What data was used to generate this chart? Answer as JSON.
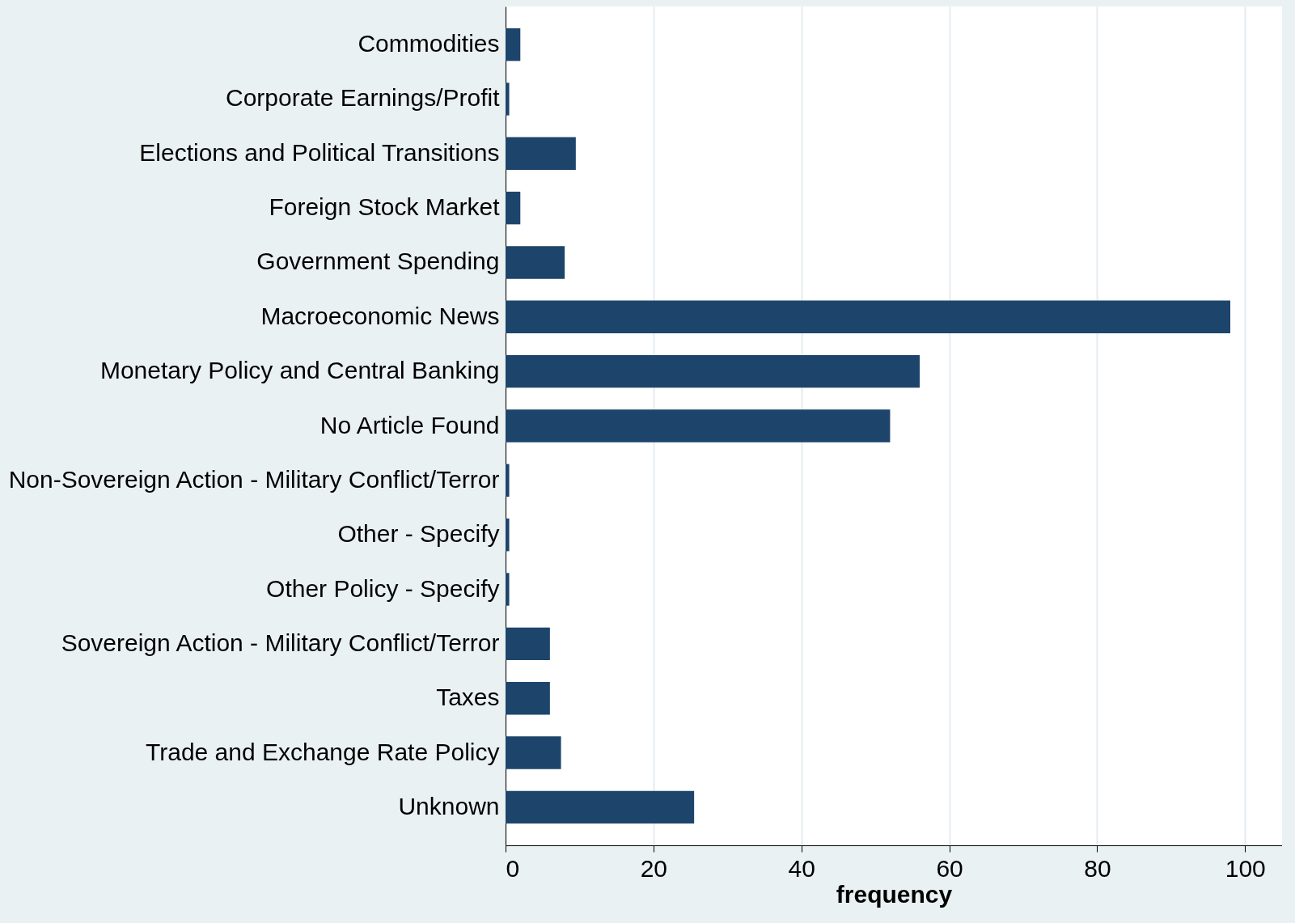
{
  "chart_data": {
    "type": "bar",
    "orientation": "horizontal",
    "xlabel": "frequency",
    "categories": [
      "Commodities",
      "Corporate Earnings/Profit",
      "Elections and Political Transitions",
      "Foreign Stock Market",
      "Government Spending",
      "Macroeconomic News",
      "Monetary Policy and Central Banking",
      "No Article Found",
      "Non-Sovereign Action - Military Conflict/Terror",
      "Other - Specify",
      "Other Policy - Specify",
      "Sovereign Action - Military Conflict/Terror",
      "Taxes",
      "Trade and Exchange Rate Policy",
      "Unknown"
    ],
    "values": [
      2,
      0.5,
      9.5,
      2,
      8,
      98,
      56,
      52,
      0.5,
      0.5,
      0.5,
      6,
      6,
      7.5,
      25.5
    ],
    "color": "#1d456b",
    "xlim": [
      0,
      105
    ],
    "xticks": [
      0,
      20,
      40,
      60,
      80,
      100
    ],
    "grid": "x"
  }
}
